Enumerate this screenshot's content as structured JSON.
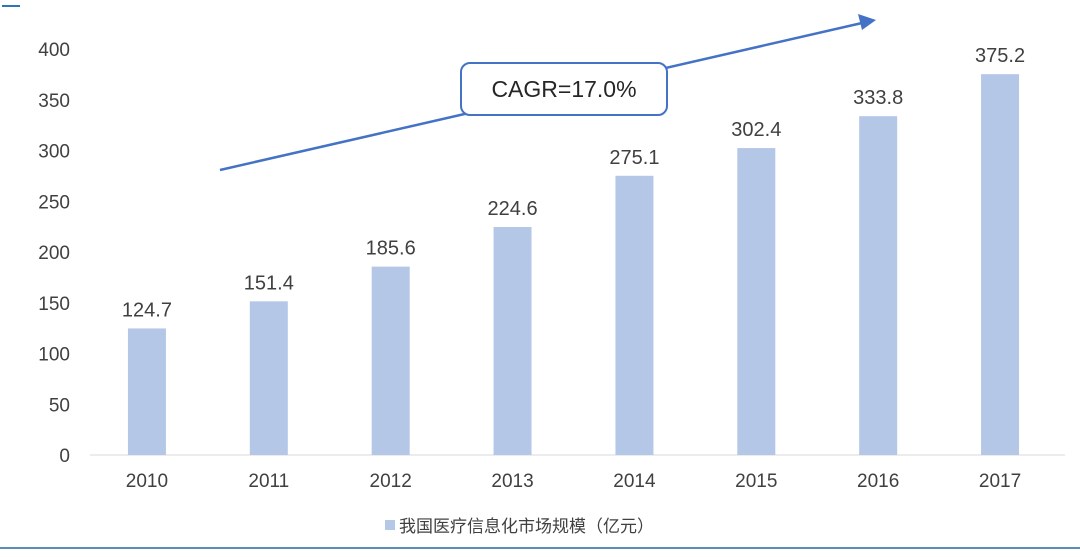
{
  "chart_data": {
    "type": "bar",
    "categories": [
      "2010",
      "2011",
      "2012",
      "2013",
      "2014",
      "2015",
      "2016",
      "2017"
    ],
    "series": [
      {
        "name": "我国医疗信息化市场规模（亿元）",
        "values": [
          124.7,
          151.4,
          185.6,
          224.6,
          275.1,
          302.4,
          333.8,
          375.2
        ],
        "color": "#b4c7e7"
      }
    ],
    "data_labels": [
      "124.7",
      "151.4",
      "185.6",
      "224.6",
      "275.1",
      "302.4",
      "333.8",
      "375.2"
    ],
    "ylim": [
      0,
      400
    ],
    "yticks": [
      "0",
      "50",
      "100",
      "150",
      "200",
      "250",
      "300",
      "350",
      "400"
    ],
    "grid": false,
    "legend_position": "bottom",
    "annotation": {
      "text": "CAGR=17.0%",
      "arrow_color": "#4472c4"
    }
  }
}
